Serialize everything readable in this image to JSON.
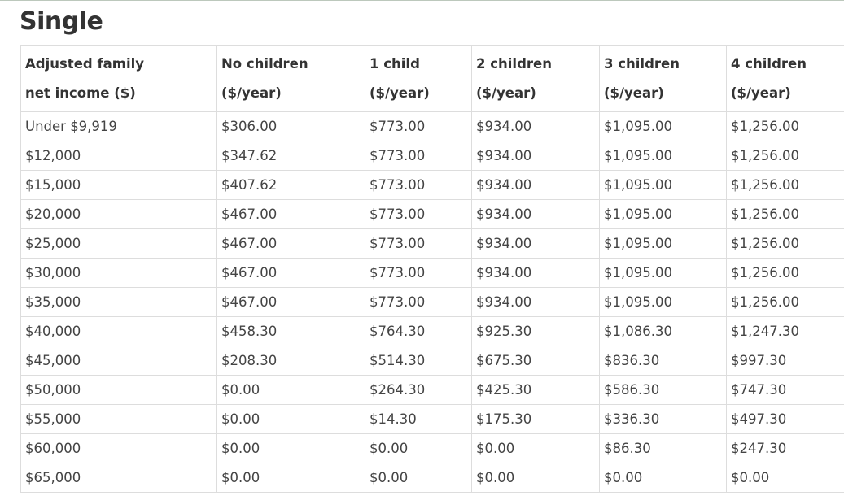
{
  "section_title": "Single",
  "table": {
    "headers": [
      {
        "line1": "Adjusted family",
        "line2": "net income ($)"
      },
      {
        "line1": "No children",
        "line2": "($/year)"
      },
      {
        "line1": "1 child",
        "line2": "($/year)"
      },
      {
        "line1": "2 children",
        "line2": "($/year)"
      },
      {
        "line1": "3 children",
        "line2": "($/year)"
      },
      {
        "line1": "4 children",
        "line2": "($/year)"
      }
    ],
    "rows": [
      [
        "Under $9,919",
        "$306.00",
        "$773.00",
        "$934.00",
        "$1,095.00",
        "$1,256.00"
      ],
      [
        "$12,000",
        "$347.62",
        "$773.00",
        "$934.00",
        "$1,095.00",
        "$1,256.00"
      ],
      [
        "$15,000",
        "$407.62",
        "$773.00",
        "$934.00",
        "$1,095.00",
        "$1,256.00"
      ],
      [
        "$20,000",
        "$467.00",
        "$773.00",
        "$934.00",
        "$1,095.00",
        "$1,256.00"
      ],
      [
        "$25,000",
        "$467.00",
        "$773.00",
        "$934.00",
        "$1,095.00",
        "$1,256.00"
      ],
      [
        "$30,000",
        "$467.00",
        "$773.00",
        "$934.00",
        "$1,095.00",
        "$1,256.00"
      ],
      [
        "$35,000",
        "$467.00",
        "$773.00",
        "$934.00",
        "$1,095.00",
        "$1,256.00"
      ],
      [
        "$40,000",
        "$458.30",
        "$764.30",
        "$925.30",
        "$1,086.30",
        "$1,247.30"
      ],
      [
        "$45,000",
        "$208.30",
        "$514.30",
        "$675.30",
        "$836.30",
        "$997.30"
      ],
      [
        "$50,000",
        "$0.00",
        "$264.30",
        "$425.30",
        "$586.30",
        "$747.30"
      ],
      [
        "$55,000",
        "$0.00",
        "$14.30",
        "$175.30",
        "$336.30",
        "$497.30"
      ],
      [
        "$60,000",
        "$0.00",
        "$0.00",
        "$0.00",
        "$86.30",
        "$247.30"
      ],
      [
        "$65,000",
        "$0.00",
        "$0.00",
        "$0.00",
        "$0.00",
        "$0.00"
      ]
    ]
  }
}
